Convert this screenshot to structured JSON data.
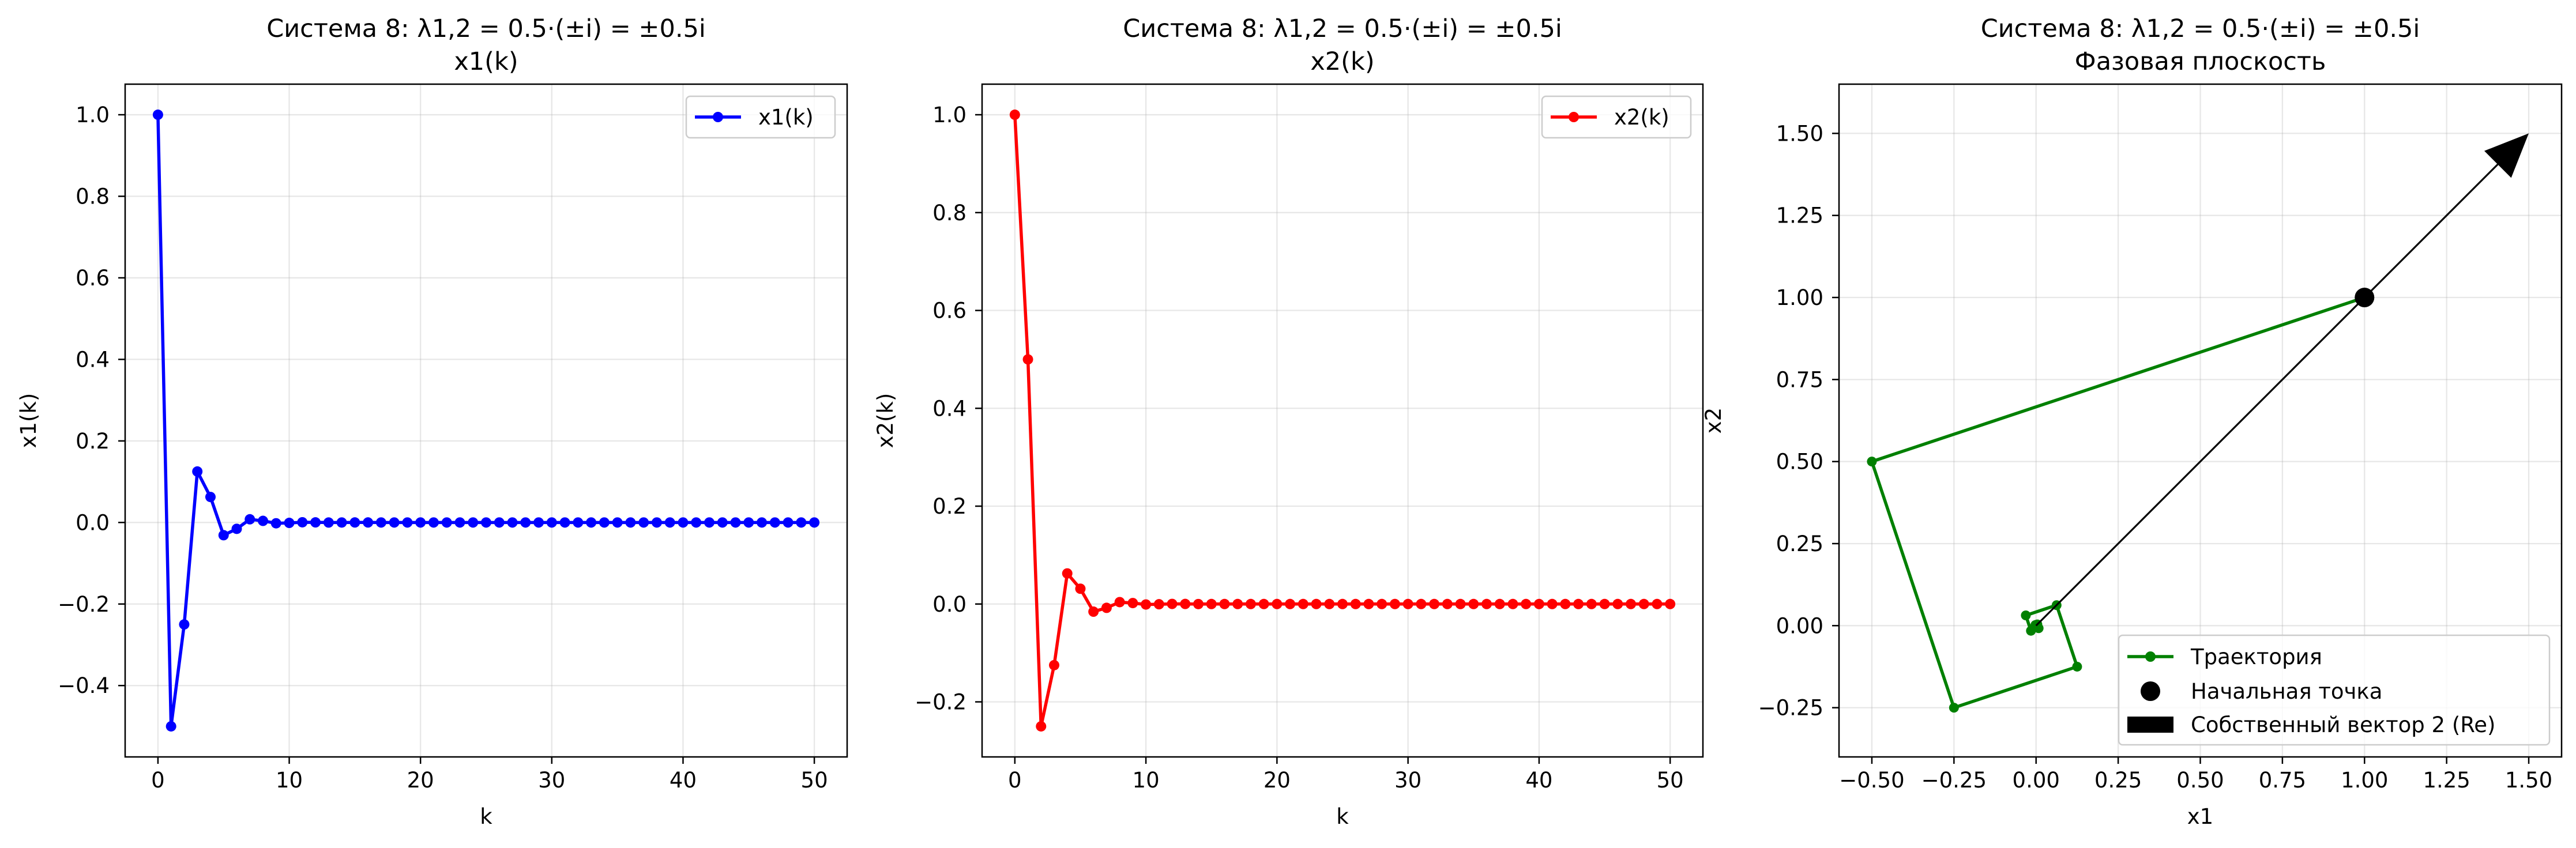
{
  "chart_data": [
    {
      "type": "line",
      "title": "Система 8: λ1,2 = 0.5·(±i) = ±0.5i",
      "subtitle": "x1(k)",
      "xlabel": "k",
      "ylabel": "x1(k)",
      "xlim": [
        -2.5,
        52.5
      ],
      "ylim": [
        -0.575,
        1.075
      ],
      "xticks": [
        0,
        10,
        20,
        30,
        40,
        50
      ],
      "yticks": [
        -0.4,
        -0.2,
        0.0,
        0.2,
        0.4,
        0.6,
        0.8,
        1.0
      ],
      "xtick_labels": [
        "0",
        "10",
        "20",
        "30",
        "40",
        "50"
      ],
      "ytick_labels": [
        "−0.4",
        "−0.2",
        "0.0",
        "0.2",
        "0.4",
        "0.6",
        "0.8",
        "1.0"
      ],
      "grid": true,
      "legend": "top-right",
      "series": [
        {
          "name": "x1(k)",
          "color": "#0000ff",
          "x": [
            0,
            1,
            2,
            3,
            4,
            5,
            6,
            7,
            8,
            9,
            10,
            11,
            12,
            13,
            14,
            15,
            16,
            17,
            18,
            19,
            20,
            21,
            22,
            23,
            24,
            25,
            26,
            27,
            28,
            29,
            30,
            31,
            32,
            33,
            34,
            35,
            36,
            37,
            38,
            39,
            40,
            41,
            42,
            43,
            44,
            45,
            46,
            47,
            48,
            49,
            50
          ],
          "y": [
            1.0,
            -0.5,
            -0.25,
            0.125,
            0.0625,
            -0.03125,
            -0.015625,
            0.0078125,
            0.00390625,
            -0.001953,
            -0.000977,
            0.000488,
            0.000244,
            -0.000122,
            -6.1e-05,
            3.1e-05,
            1.5e-05,
            0,
            0,
            0,
            0,
            0,
            0,
            0,
            0,
            0,
            0,
            0,
            0,
            0,
            0,
            0,
            0,
            0,
            0,
            0,
            0,
            0,
            0,
            0,
            0,
            0,
            0,
            0,
            0,
            0,
            0,
            0,
            0,
            0,
            0
          ]
        }
      ]
    },
    {
      "type": "line",
      "title": "Система 8: λ1,2 = 0.5·(±i) = ±0.5i",
      "subtitle": "x2(k)",
      "xlabel": "k",
      "ylabel": "x2(k)",
      "xlim": [
        -2.5,
        52.5
      ],
      "ylim": [
        -0.3125,
        1.0625
      ],
      "xticks": [
        0,
        10,
        20,
        30,
        40,
        50
      ],
      "yticks": [
        -0.2,
        0.0,
        0.2,
        0.4,
        0.6,
        0.8,
        1.0
      ],
      "xtick_labels": [
        "0",
        "10",
        "20",
        "30",
        "40",
        "50"
      ],
      "ytick_labels": [
        "−0.2",
        "0.0",
        "0.2",
        "0.4",
        "0.6",
        "0.8",
        "1.0"
      ],
      "grid": true,
      "legend": "top-right",
      "series": [
        {
          "name": "x2(k)",
          "color": "#ff0000",
          "x": [
            0,
            1,
            2,
            3,
            4,
            5,
            6,
            7,
            8,
            9,
            10,
            11,
            12,
            13,
            14,
            15,
            16,
            17,
            18,
            19,
            20,
            21,
            22,
            23,
            24,
            25,
            26,
            27,
            28,
            29,
            30,
            31,
            32,
            33,
            34,
            35,
            36,
            37,
            38,
            39,
            40,
            41,
            42,
            43,
            44,
            45,
            46,
            47,
            48,
            49,
            50
          ],
          "y": [
            1.0,
            0.5,
            -0.25,
            -0.125,
            0.0625,
            0.03125,
            -0.015625,
            -0.0078125,
            0.00390625,
            0.001953,
            -0.000977,
            -0.000488,
            0.000244,
            0.000122,
            -6.1e-05,
            -3.1e-05,
            1.5e-05,
            0,
            0,
            0,
            0,
            0,
            0,
            0,
            0,
            0,
            0,
            0,
            0,
            0,
            0,
            0,
            0,
            0,
            0,
            0,
            0,
            0,
            0,
            0,
            0,
            0,
            0,
            0,
            0,
            0,
            0,
            0,
            0,
            0,
            0
          ]
        }
      ]
    },
    {
      "type": "scatter",
      "title": "Система 8: λ1,2 = 0.5·(±i) = ±0.5i",
      "subtitle": "Фазовая плоскость",
      "xlabel": "x1",
      "ylabel": "x2",
      "xlim": [
        -0.6,
        1.6
      ],
      "ylim": [
        -0.4,
        1.65
      ],
      "xticks": [
        -0.5,
        -0.25,
        0.0,
        0.25,
        0.5,
        0.75,
        1.0,
        1.25,
        1.5
      ],
      "yticks": [
        -0.25,
        0.0,
        0.25,
        0.5,
        0.75,
        1.0,
        1.25,
        1.5
      ],
      "xtick_labels": [
        "−0.50",
        "−0.25",
        "0.00",
        "0.25",
        "0.50",
        "0.75",
        "1.00",
        "1.25",
        "1.50"
      ],
      "ytick_labels": [
        "−0.25",
        "0.00",
        "0.25",
        "0.50",
        "0.75",
        "1.00",
        "1.25",
        "1.50"
      ],
      "grid": true,
      "legend": "bottom-right",
      "legend_entries": [
        "Траектория",
        "Начальная точка",
        "Собственный вектор 2 (Re)"
      ],
      "series": [
        {
          "name": "Траектория",
          "color": "#008000",
          "x": [
            1.0,
            -0.5,
            -0.25,
            0.125,
            0.0625,
            -0.03125,
            -0.015625,
            0.0078125,
            0.00390625,
            -0.001953,
            -0.000977,
            0.000488,
            0.000244,
            0.0
          ],
          "y": [
            1.0,
            0.5,
            -0.25,
            -0.125,
            0.0625,
            0.03125,
            -0.015625,
            -0.0078125,
            0.00390625,
            0.001953,
            -0.000977,
            -0.000488,
            0.000244,
            0.0
          ]
        },
        {
          "name": "Начальная точка",
          "color": "#000000",
          "x": [
            1.0
          ],
          "y": [
            1.0
          ]
        }
      ],
      "eigenvector_arrow": {
        "name": "Собственный вектор 2 (Re)",
        "color": "#000000",
        "x_start": 0.0,
        "y_start": 0.0,
        "x_end": 1.5,
        "y_end": 1.5
      }
    }
  ]
}
